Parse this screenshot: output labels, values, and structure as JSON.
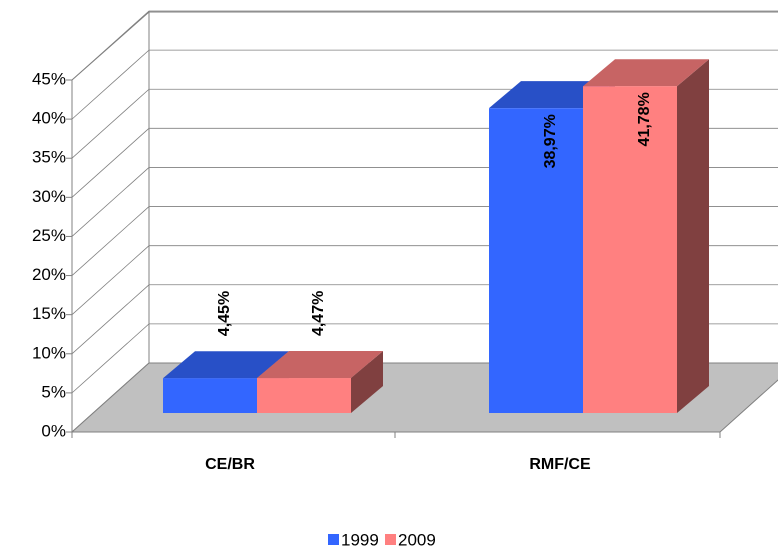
{
  "chart_data": {
    "type": "bar3d",
    "categories": [
      "CE/BR",
      "RMF/CE"
    ],
    "series": [
      {
        "name": "1999",
        "color": "#3366ff",
        "values": [
          4.45,
          38.97
        ],
        "value_labels": [
          "4,45%",
          "38,97%"
        ]
      },
      {
        "name": "2009",
        "color": "#ff8080",
        "values": [
          4.47,
          41.78
        ],
        "value_labels": [
          "4,47%",
          "41,78%"
        ]
      }
    ],
    "ylim": [
      0,
      45
    ],
    "yticks": [
      {
        "value": 0,
        "label": "0%"
      },
      {
        "value": 5,
        "label": "5%"
      },
      {
        "value": 10,
        "label": "10%"
      },
      {
        "value": 15,
        "label": "15%"
      },
      {
        "value": 20,
        "label": "20%"
      },
      {
        "value": 25,
        "label": "25%"
      },
      {
        "value": 30,
        "label": "30%"
      },
      {
        "value": 35,
        "label": "35%"
      },
      {
        "value": 40,
        "label": "40%"
      },
      {
        "value": 45,
        "label": "45%"
      }
    ],
    "grid": true,
    "legend": "bottom"
  }
}
